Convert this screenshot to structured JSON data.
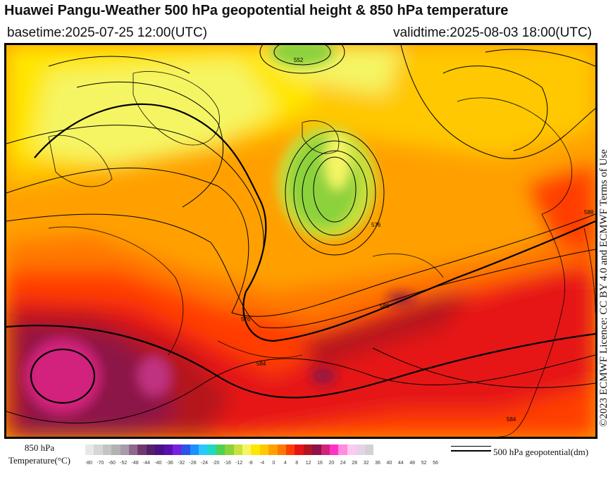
{
  "header": {
    "title": "Huawei Pangu-Weather 500 hPa geopotential height & 850 hPa temperature",
    "basetime": "basetime:2025-07-25 12:00(UTC)",
    "validtime": "validtime:2025-08-03 18:00(UTC)"
  },
  "credit": "©2023 ECMWF Licence: CC BY 4.0 and ECMWF Terms of Use",
  "legend": {
    "temperature_label_line1": "850 hPa",
    "temperature_label_line2": "Temperature(°C)",
    "ticks": [
      "-80",
      "-70",
      "-60",
      "-52",
      "-48",
      "-44",
      "-40",
      "-36",
      "-32",
      "-28",
      "-24",
      "-20",
      "-16",
      "-12",
      "-8",
      "-4",
      "0",
      "4",
      "8",
      "12",
      "16",
      "20",
      "24",
      "28",
      "32",
      "36",
      "40",
      "44",
      "48",
      "52",
      "56"
    ],
    "colors": [
      "#e8e8e8",
      "#d6d6d6",
      "#c4c4c4",
      "#b2b2b2",
      "#a89aa8",
      "#8c6a8c",
      "#6e3a6e",
      "#55206a",
      "#4b1085",
      "#5a10b0",
      "#7a1fe0",
      "#2a55e6",
      "#1e90ff",
      "#28c8ff",
      "#20d8c0",
      "#50d050",
      "#8cd23c",
      "#c8e13c",
      "#f5f564",
      "#ffe600",
      "#ffc800",
      "#ffa000",
      "#ff7800",
      "#ff3c00",
      "#e61414",
      "#b4141e",
      "#8c1446",
      "#d2237d",
      "#ff32c8",
      "#ff8cdc",
      "#ffc8f0",
      "#e6d2e6",
      "#d2d2d2"
    ],
    "line_label": "500 hPa geopotential(dm)"
  },
  "map": {
    "contour_labels": [
      "552",
      "576",
      "584",
      "588",
      "576",
      "584",
      "588"
    ]
  }
}
